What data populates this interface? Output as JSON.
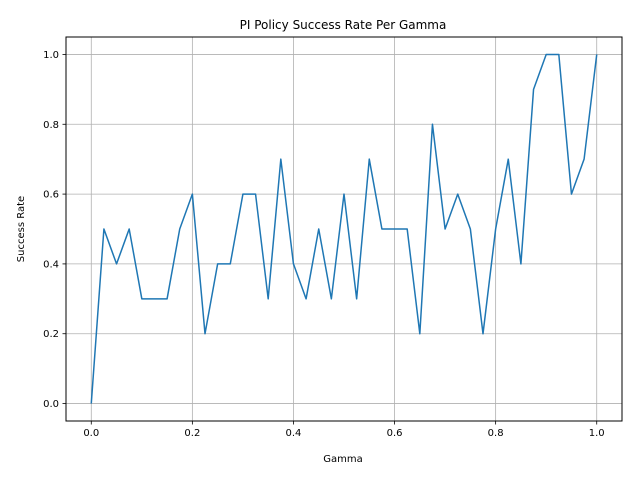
{
  "chart_data": {
    "type": "line",
    "title": "PI Policy Success Rate Per Gamma",
    "xlabel": "Gamma",
    "ylabel": "Success Rate",
    "xlim": [
      -0.05,
      1.05
    ],
    "ylim": [
      -0.05,
      1.05
    ],
    "grid": true,
    "xticks": [
      0.0,
      0.2,
      0.4,
      0.6,
      0.8,
      1.0
    ],
    "xtick_labels": [
      "0.0",
      "0.2",
      "0.4",
      "0.6",
      "0.8",
      "1.0"
    ],
    "yticks": [
      0.0,
      0.2,
      0.4,
      0.6,
      0.8,
      1.0
    ],
    "ytick_labels": [
      "0.0",
      "0.2",
      "0.4",
      "0.6",
      "0.8",
      "1.0"
    ],
    "series": [
      {
        "color": "#1f77b4",
        "x": [
          0.0,
          0.025,
          0.05,
          0.075,
          0.1,
          0.125,
          0.15,
          0.175,
          0.2,
          0.225,
          0.25,
          0.275,
          0.3,
          0.325,
          0.35,
          0.375,
          0.4,
          0.425,
          0.45,
          0.475,
          0.5,
          0.525,
          0.55,
          0.575,
          0.6,
          0.625,
          0.65,
          0.675,
          0.7,
          0.725,
          0.75,
          0.775,
          0.8,
          0.825,
          0.85,
          0.875,
          0.9,
          0.925,
          0.95,
          0.975,
          1.0
        ],
        "y": [
          0.0,
          0.5,
          0.4,
          0.5,
          0.3,
          0.3,
          0.3,
          0.5,
          0.6,
          0.2,
          0.4,
          0.4,
          0.6,
          0.6,
          0.3,
          0.7,
          0.4,
          0.3,
          0.5,
          0.3,
          0.6,
          0.3,
          0.7,
          0.5,
          0.5,
          0.5,
          0.2,
          0.8,
          0.5,
          0.6,
          0.5,
          0.2,
          0.5,
          0.7,
          0.4,
          0.9,
          1.0,
          1.0,
          0.6,
          0.7,
          1.0
        ]
      }
    ]
  }
}
